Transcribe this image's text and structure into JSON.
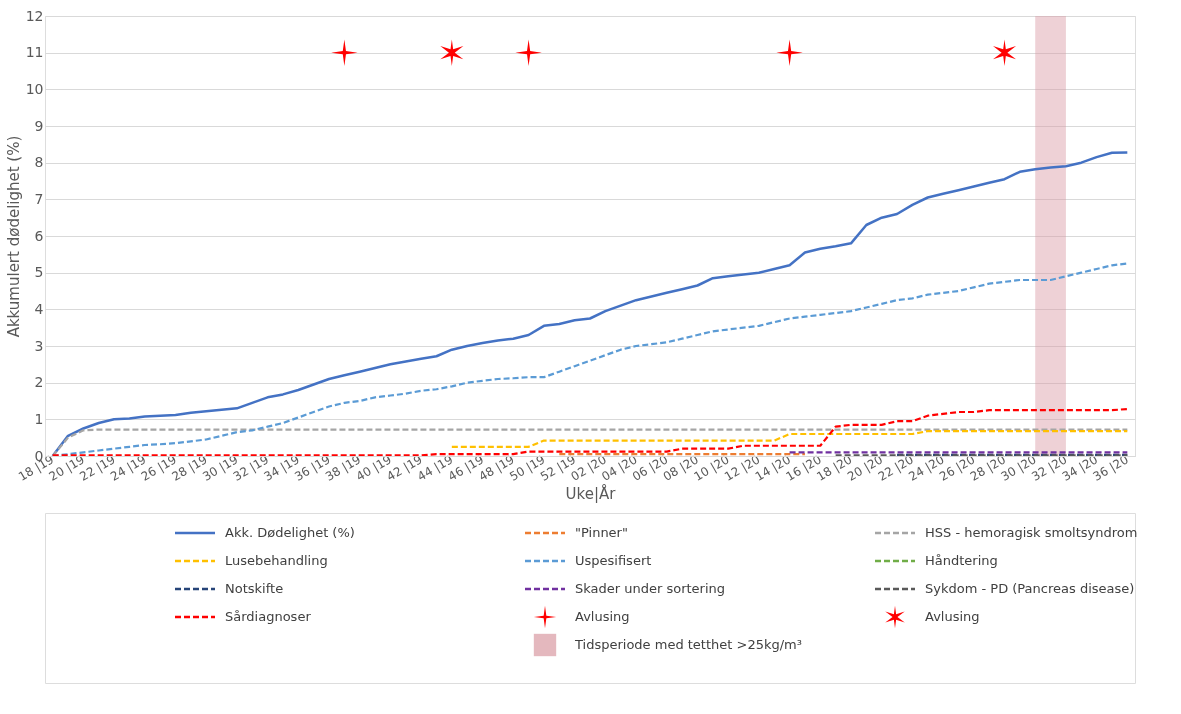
{
  "chart_data": {
    "type": "line",
    "xlabel": "Uke|År",
    "ylabel": "Akkumulert dødelighet (%)",
    "categories": [
      "18 |19",
      null,
      "20 |19",
      null,
      "22 |19",
      null,
      "24 |19",
      null,
      "26 |19",
      null,
      "28 |19",
      null,
      "30 |19",
      null,
      "32 |19",
      null,
      "34 |19",
      null,
      "36 |19",
      null,
      "38 |19",
      null,
      "40 |19",
      null,
      "42 |19",
      null,
      "44 |19",
      null,
      "46 |19",
      null,
      "48 |19",
      null,
      "50 |19",
      null,
      "52 |19",
      null,
      "02 |20",
      null,
      "04 |20",
      null,
      "06 |20",
      null,
      "08 |20",
      null,
      "10 |20",
      null,
      "12 |20",
      null,
      "14 |20",
      null,
      "16 |20",
      null,
      "18 |20",
      null,
      "20 |20",
      null,
      "22 |20",
      null,
      "24 |20",
      null,
      "26 |20",
      null,
      "28 |20",
      null,
      "30 |20",
      null,
      "32 |20",
      null,
      "34 |20",
      null,
      "36 |20"
    ],
    "ylim": [
      0,
      12
    ],
    "yticks": [
      0,
      1,
      2,
      3,
      4,
      5,
      6,
      7,
      8,
      9,
      10,
      11,
      12
    ],
    "grid": "y",
    "legend": "bottom",
    "series": [
      {
        "name": "Akk. Dødelighet (%)",
        "color": "#4472c4",
        "line_style": "solid",
        "values": [
          0,
          0.55,
          0.75,
          0.9,
          1.0,
          1.02,
          1.08,
          1.1,
          1.12,
          1.18,
          1.22,
          1.26,
          1.3,
          1.45,
          1.6,
          1.68,
          1.8,
          1.95,
          2.1,
          2.2,
          2.3,
          2.4,
          2.5,
          2.58,
          2.65,
          2.72,
          2.9,
          3.0,
          3.08,
          3.15,
          3.2,
          3.3,
          3.55,
          3.6,
          3.7,
          3.75,
          3.95,
          4.1,
          4.25,
          4.35,
          4.45,
          4.55,
          4.65,
          4.85,
          4.9,
          4.95,
          5.0,
          5.1,
          5.2,
          5.55,
          5.65,
          5.72,
          5.8,
          6.3,
          6.5,
          6.6,
          6.85,
          7.05,
          7.15,
          7.25,
          7.35,
          7.45,
          7.55,
          7.75,
          7.82,
          7.87,
          7.9,
          8.0,
          8.15,
          8.27,
          8.28
        ]
      },
      {
        "name": "\"Pinner\"",
        "color": "#ed7d31",
        "line_style": "dashed",
        "values": [
          null,
          null,
          null,
          null,
          null,
          null,
          null,
          null,
          null,
          null,
          null,
          null,
          null,
          null,
          null,
          null,
          null,
          null,
          null,
          null,
          null,
          null,
          null,
          null,
          null,
          null,
          null,
          null,
          null,
          null,
          null,
          null,
          null,
          0.05,
          0.05,
          0.05,
          0.05,
          0.05,
          0.05,
          0.05,
          0.05,
          0.05,
          0.05,
          0.05,
          0.05,
          0.05,
          0.05,
          0.05,
          0.05,
          0.05,
          null,
          null,
          null,
          null,
          null,
          null,
          null,
          null,
          null,
          null,
          null,
          null,
          null,
          null,
          null,
          null,
          null,
          null,
          null,
          null,
          null
        ]
      },
      {
        "name": "HSS - hemoragisk smoltsyndrom",
        "color": "#a5a5a5",
        "line_style": "dashed",
        "values": [
          0,
          0.5,
          0.7,
          0.72,
          0.72,
          0.72,
          0.72,
          0.72,
          0.72,
          0.72,
          0.72,
          0.72,
          0.72,
          0.72,
          0.72,
          0.72,
          0.72,
          0.72,
          0.72,
          0.72,
          0.72,
          0.72,
          0.72,
          0.72,
          0.72,
          0.72,
          0.72,
          0.72,
          0.72,
          0.72,
          0.72,
          0.72,
          0.72,
          0.72,
          0.72,
          0.72,
          0.72,
          0.72,
          0.72,
          0.72,
          0.72,
          0.72,
          0.72,
          0.72,
          0.72,
          0.72,
          0.72,
          0.72,
          0.72,
          0.72,
          0.72,
          0.72,
          0.72,
          0.72,
          0.72,
          0.72,
          0.72,
          0.72,
          0.72,
          0.72,
          0.72,
          0.72,
          0.72,
          0.72,
          0.72,
          0.72,
          0.72,
          0.72,
          0.72,
          0.72,
          0.72
        ]
      },
      {
        "name": "Lusebehandling",
        "color": "#ffc000",
        "line_style": "dashed",
        "values": [
          null,
          null,
          null,
          null,
          null,
          null,
          null,
          null,
          null,
          null,
          null,
          null,
          null,
          null,
          null,
          null,
          null,
          null,
          null,
          null,
          null,
          null,
          null,
          null,
          null,
          null,
          0.25,
          0.25,
          0.25,
          0.25,
          0.25,
          0.25,
          0.42,
          0.42,
          0.42,
          0.42,
          0.42,
          0.42,
          0.42,
          0.42,
          0.42,
          0.42,
          0.42,
          0.42,
          0.42,
          0.42,
          0.42,
          0.42,
          0.6,
          0.6,
          0.6,
          0.6,
          0.6,
          0.6,
          0.6,
          0.6,
          0.6,
          0.68,
          0.68,
          0.68,
          0.68,
          0.68,
          0.68,
          0.68,
          0.68,
          0.68,
          0.68,
          0.68,
          0.68,
          0.68,
          0.68
        ]
      },
      {
        "name": "Uspesifisert",
        "color": "#5b9bd5",
        "line_style": "dashed",
        "values": [
          0,
          0.05,
          0.1,
          0.15,
          0.2,
          0.25,
          0.3,
          0.32,
          0.35,
          0.4,
          0.45,
          0.55,
          0.65,
          0.7,
          0.8,
          0.9,
          1.05,
          1.2,
          1.35,
          1.45,
          1.5,
          1.6,
          1.65,
          1.7,
          1.78,
          1.82,
          1.9,
          2.0,
          2.05,
          2.1,
          2.12,
          2.15,
          2.15,
          2.3,
          2.45,
          2.6,
          2.75,
          2.9,
          3.0,
          3.05,
          3.1,
          3.2,
          3.3,
          3.4,
          3.45,
          3.5,
          3.55,
          3.65,
          3.75,
          3.8,
          3.85,
          3.9,
          3.95,
          4.05,
          4.15,
          4.25,
          4.3,
          4.4,
          4.45,
          4.5,
          4.6,
          4.7,
          4.75,
          4.8,
          4.8,
          4.8,
          4.9,
          5.0,
          5.1,
          5.2,
          5.25
        ]
      },
      {
        "name": "Håndtering",
        "color": "#70ad47",
        "line_style": "dashed",
        "values": [
          null,
          null,
          null,
          null,
          null,
          null,
          null,
          null,
          null,
          null,
          null,
          null,
          null,
          null,
          null,
          null,
          null,
          null,
          null,
          null,
          null,
          null,
          null,
          null,
          null,
          null,
          null,
          null,
          null,
          null,
          null,
          null,
          null,
          null,
          null,
          null,
          null,
          null,
          null,
          null,
          null,
          null,
          null,
          null,
          null,
          null,
          null,
          null,
          null,
          null,
          null,
          null,
          null,
          null,
          null,
          null,
          null,
          null,
          null,
          null,
          null,
          null,
          null,
          null,
          null,
          null,
          null,
          null,
          null,
          null,
          null
        ]
      },
      {
        "name": "Notskifte",
        "color": "#264478",
        "line_style": "dashed",
        "values": [
          null,
          null,
          null,
          null,
          null,
          null,
          null,
          null,
          null,
          null,
          null,
          null,
          null,
          null,
          null,
          null,
          null,
          null,
          null,
          null,
          null,
          null,
          null,
          null,
          null,
          null,
          null,
          null,
          null,
          null,
          null,
          null,
          null,
          null,
          null,
          null,
          null,
          null,
          null,
          null,
          null,
          null,
          null,
          null,
          null,
          null,
          null,
          null,
          null,
          null,
          null,
          null,
          null,
          null,
          null,
          0.03,
          0.03,
          0.03,
          0.03,
          0.03,
          0.03,
          0.03,
          0.03,
          0.03,
          0.03,
          0.03,
          0.03,
          0.03,
          0.03,
          0.03,
          0.03
        ]
      },
      {
        "name": "Skader under sortering",
        "color": "#7030a0",
        "line_style": "dashed",
        "values": [
          null,
          null,
          null,
          null,
          null,
          null,
          null,
          null,
          null,
          null,
          null,
          null,
          null,
          null,
          null,
          null,
          null,
          null,
          null,
          null,
          null,
          null,
          null,
          null,
          null,
          null,
          null,
          null,
          null,
          null,
          null,
          null,
          null,
          null,
          null,
          null,
          null,
          null,
          null,
          null,
          null,
          null,
          null,
          null,
          null,
          null,
          null,
          null,
          0.1,
          0.1,
          0.1,
          0.1,
          0.1,
          0.1,
          0.1,
          0.1,
          0.1,
          0.1,
          0.1,
          0.1,
          0.1,
          0.1,
          0.1,
          0.1,
          0.1,
          0.1,
          0.1,
          0.1,
          0.1,
          0.1,
          0.1
        ]
      },
      {
        "name": "Sykdom - PD (Pancreas disease)",
        "color": "#595959",
        "line_style": "dashed",
        "values": [
          null,
          null,
          null,
          null,
          null,
          null,
          null,
          null,
          null,
          null,
          null,
          null,
          null,
          null,
          null,
          null,
          null,
          null,
          null,
          null,
          null,
          null,
          null,
          null,
          null,
          null,
          null,
          null,
          null,
          null,
          null,
          null,
          null,
          null,
          null,
          null,
          null,
          null,
          null,
          null,
          null,
          null,
          null,
          null,
          null,
          null,
          null,
          null,
          null,
          null,
          null,
          0.02,
          0.02,
          0.02,
          0.02,
          0.02,
          0.02,
          0.02,
          0.02,
          0.02,
          0.02,
          0.02,
          0.02,
          0.02,
          0.02,
          0.02,
          0.02,
          0.02,
          0.02,
          0.02,
          0.02
        ]
      },
      {
        "name": "Sårdiagnoser",
        "color": "#ff0000",
        "line_style": "dashed",
        "values": [
          0.02,
          0.02,
          0.02,
          0.02,
          0.02,
          0.02,
          0.02,
          0.02,
          0.02,
          0.02,
          0.02,
          0.02,
          0.02,
          0.02,
          0.02,
          0.02,
          0.02,
          0.02,
          0.02,
          0.02,
          0.02,
          0.02,
          0.02,
          0.02,
          0.02,
          0.05,
          0.05,
          0.05,
          0.05,
          0.05,
          0.05,
          0.12,
          0.12,
          0.12,
          0.12,
          0.12,
          0.12,
          0.12,
          0.12,
          0.12,
          0.12,
          0.2,
          0.2,
          0.2,
          0.2,
          0.28,
          0.28,
          0.28,
          0.28,
          0.28,
          0.28,
          0.8,
          0.85,
          0.85,
          0.85,
          0.95,
          0.95,
          1.1,
          1.15,
          1.2,
          1.2,
          1.25,
          1.25,
          1.25,
          1.25,
          1.25,
          1.25,
          1.25,
          1.25,
          1.25,
          1.28
        ]
      },
      {
        "name": "Avlusing",
        "type": "scatter",
        "marker": "star",
        "color": "#ff0000",
        "values": [
          null,
          null,
          null,
          null,
          null,
          null,
          null,
          null,
          null,
          null,
          null,
          null,
          null,
          null,
          null,
          null,
          null,
          null,
          null,
          11,
          null,
          null,
          null,
          null,
          null,
          null,
          null,
          null,
          null,
          null,
          null,
          11,
          null,
          null,
          null,
          null,
          null,
          null,
          null,
          null,
          null,
          null,
          null,
          null,
          null,
          null,
          null,
          null,
          11,
          null,
          null,
          null,
          null,
          null,
          null,
          null,
          null,
          null,
          null,
          null,
          null,
          null,
          null,
          null,
          null,
          null,
          null,
          null,
          null,
          null,
          null
        ]
      },
      {
        "name": "Avlusing",
        "type": "scatter",
        "marker": "cross",
        "color": "#ff0000",
        "values": [
          null,
          null,
          null,
          null,
          null,
          null,
          null,
          null,
          null,
          null,
          null,
          null,
          null,
          null,
          null,
          null,
          null,
          null,
          null,
          null,
          null,
          null,
          null,
          null,
          null,
          null,
          11,
          null,
          null,
          null,
          null,
          null,
          null,
          null,
          null,
          null,
          null,
          null,
          null,
          null,
          null,
          null,
          null,
          null,
          null,
          null,
          null,
          null,
          null,
          null,
          null,
          null,
          null,
          null,
          null,
          null,
          null,
          null,
          null,
          null,
          null,
          null,
          11,
          null,
          null,
          null,
          null,
          null,
          null,
          null,
          null
        ]
      }
    ],
    "bands": [
      {
        "axis": "x",
        "from": "30 |20",
        "to": "32 |20",
        "label": "Tidsperiode med tetthet >25kg/m³",
        "color": "#d99aa3"
      }
    ]
  }
}
